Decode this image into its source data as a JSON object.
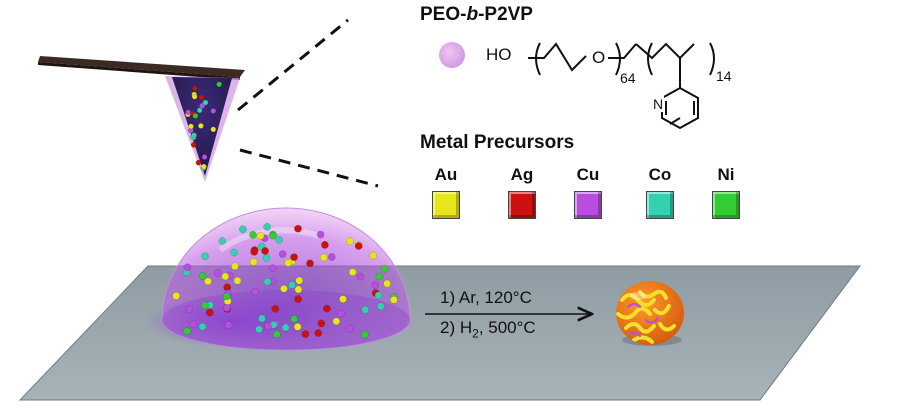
{
  "polymer": {
    "name_prefix": "PEO-",
    "name_italic": "b",
    "name_suffix": "-P2VP",
    "formula_ho": "HO",
    "formula_o": "O",
    "sub_peo": "64",
    "sub_p2vp": "14",
    "pyridine_n": "N"
  },
  "precursors": {
    "title": "Metal Precursors",
    "items": [
      {
        "label": "Au",
        "color": "#e6e61a"
      },
      {
        "label": "Ag",
        "color": "#cc1111"
      },
      {
        "label": "Cu",
        "color": "#b84ee0"
      },
      {
        "label": "Co",
        "color": "#33d1b0"
      },
      {
        "label": "Ni",
        "color": "#33cc33"
      }
    ]
  },
  "conditions": {
    "step1": "1) Ar, 120°C",
    "step2_prefix": "2) H",
    "step2_sub": "2",
    "step2_suffix": ", 500°C"
  },
  "colors": {
    "polymer_pink": "#d9a3e6",
    "dome_purple": "#a23dd6",
    "substrate": "#9aa7ad",
    "cantilever": "#3a2a22"
  }
}
